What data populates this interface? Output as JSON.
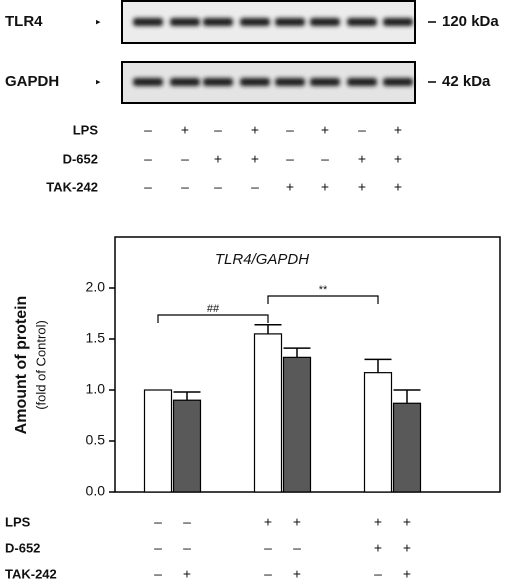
{
  "blot": {
    "rows": [
      {
        "label": "TLR4",
        "size": "120 kDa"
      },
      {
        "label": "GAPDH",
        "size": "42 kDa"
      }
    ],
    "conditions": [
      {
        "label": "LPS",
        "signs": [
          "–",
          "+",
          "–",
          "+",
          "–",
          "+",
          "–",
          "+"
        ]
      },
      {
        "label": "D-652",
        "signs": [
          "–",
          "–",
          "+",
          "+",
          "–",
          "–",
          "+",
          "+"
        ]
      },
      {
        "label": "TAK-242",
        "signs": [
          "–",
          "–",
          "–",
          "–",
          "+",
          "+",
          "+",
          "+"
        ]
      }
    ]
  },
  "chart_data": {
    "type": "bar",
    "title": "TLR4/GAPDH",
    "y_label": "Amount of protein",
    "y_sublabel": "(fold of Control)",
    "values": [
      1.0,
      0.9,
      1.55,
      1.32,
      1.17,
      0.87
    ],
    "errors": [
      0,
      0.08,
      0.09,
      0.09,
      0.13,
      0.13
    ],
    "colors": [
      "#ffffff",
      "#595959",
      "#ffffff",
      "#595959",
      "#ffffff",
      "#595959"
    ],
    "ylim": [
      0,
      2.5
    ],
    "yticks": [
      {
        "value": 0,
        "label": "0.0"
      },
      {
        "value": 0.5,
        "label": "0.5"
      },
      {
        "value": 1,
        "label": "1.0"
      },
      {
        "value": 1.5,
        "label": "1.5"
      },
      {
        "value": 2,
        "label": "2.0"
      }
    ],
    "annotations": [
      {
        "text": "##"
      },
      {
        "text": "**"
      }
    ],
    "conditions": [
      {
        "label": "LPS",
        "signs": [
          "–",
          "–",
          "+",
          "+",
          "+",
          "+"
        ]
      },
      {
        "label": "D-652",
        "signs": [
          "–",
          "–",
          "–",
          "–",
          "+",
          "+"
        ]
      },
      {
        "label": "TAK-242",
        "signs": [
          "–",
          "+",
          "–",
          "+",
          "–",
          "+"
        ]
      }
    ]
  }
}
